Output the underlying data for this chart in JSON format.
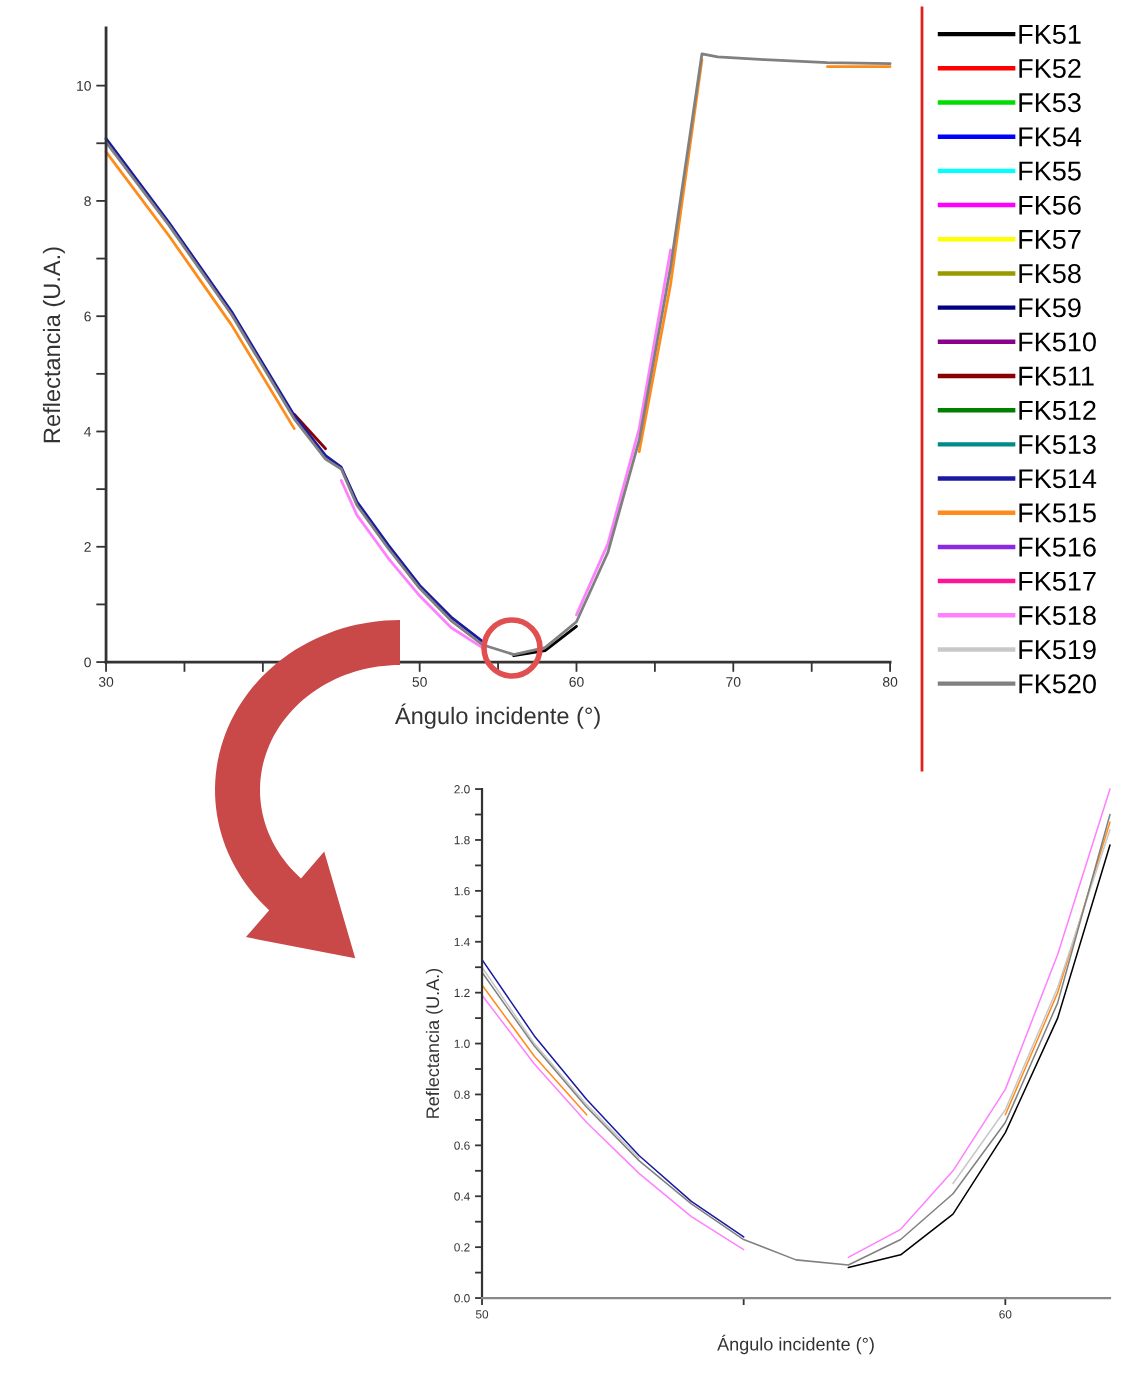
{
  "chart_data": [
    {
      "type": "line",
      "xlabel": "Ángulo incidente (°)",
      "ylabel": "Reflectancia (U.A.)",
      "legend": "right",
      "x": [
        30,
        34,
        38,
        42,
        44,
        45,
        46,
        48,
        50,
        52,
        54,
        56,
        58,
        60,
        62,
        64,
        66,
        68,
        69,
        72,
        76,
        80
      ],
      "xlim": [
        30,
        80
      ],
      "xticks": [
        30,
        {
          "value": 35,
          "label": null
        },
        {
          "value": 40,
          "label": null
        },
        {
          "value": 45,
          "label": null
        },
        50,
        {
          "value": 55,
          "label": null
        },
        60,
        {
          "value": 65,
          "label": null
        },
        70,
        {
          "value": 75,
          "label": null
        },
        80
      ],
      "ylim": [
        0,
        11
      ],
      "yticks": [
        0,
        {
          "value": 1,
          "label": null
        },
        2,
        {
          "value": 3,
          "label": null
        },
        4,
        {
          "value": 5,
          "label": null
        },
        6,
        {
          "value": 7,
          "label": null
        },
        8,
        {
          "value": 9,
          "label": null
        },
        10
      ],
      "series": [
        {
          "name": "FK51",
          "color": "#000000",
          "values": [
            null,
            null,
            null,
            null,
            null,
            null,
            null,
            null,
            null,
            null,
            null,
            0.11,
            0.2,
            0.62,
            null,
            null,
            null,
            null,
            null,
            null,
            null,
            null
          ]
        },
        {
          "name": "FK52",
          "color": "#ff0000",
          "values": [
            null,
            null,
            null,
            null,
            null,
            null,
            null,
            null,
            null,
            null,
            null,
            null,
            null,
            null,
            null,
            null,
            null,
            null,
            null,
            null,
            null,
            null
          ]
        },
        {
          "name": "FK53",
          "color": "#00dd00",
          "values": [
            null,
            null,
            null,
            null,
            null,
            null,
            null,
            null,
            null,
            null,
            null,
            null,
            null,
            null,
            null,
            null,
            null,
            null,
            null,
            null,
            null,
            null
          ]
        },
        {
          "name": "FK54",
          "color": "#0000ff",
          "values": [
            null,
            null,
            null,
            null,
            null,
            null,
            null,
            null,
            null,
            null,
            null,
            null,
            null,
            null,
            null,
            null,
            null,
            null,
            null,
            null,
            null,
            null
          ]
        },
        {
          "name": "FK55",
          "color": "#00ffff",
          "values": [
            null,
            null,
            null,
            null,
            null,
            null,
            null,
            null,
            null,
            null,
            null,
            null,
            null,
            null,
            null,
            null,
            null,
            null,
            null,
            null,
            null,
            null
          ]
        },
        {
          "name": "FK56",
          "color": "#ff00ff",
          "values": [
            null,
            null,
            null,
            null,
            null,
            null,
            null,
            null,
            null,
            null,
            null,
            null,
            null,
            null,
            null,
            null,
            null,
            null,
            null,
            null,
            null,
            null
          ]
        },
        {
          "name": "FK57",
          "color": "#ffff00",
          "values": [
            null,
            null,
            null,
            null,
            null,
            null,
            null,
            null,
            null,
            null,
            null,
            null,
            null,
            null,
            null,
            null,
            null,
            null,
            null,
            null,
            null,
            null
          ]
        },
        {
          "name": "FK58",
          "color": "#999900",
          "values": [
            null,
            null,
            null,
            null,
            null,
            null,
            null,
            null,
            null,
            null,
            null,
            null,
            null,
            null,
            null,
            null,
            null,
            null,
            null,
            null,
            null,
            null
          ]
        },
        {
          "name": "FK59",
          "color": "#000080",
          "values": [
            null,
            null,
            null,
            null,
            null,
            null,
            null,
            null,
            null,
            null,
            null,
            null,
            null,
            null,
            null,
            null,
            null,
            null,
            null,
            null,
            null,
            null
          ]
        },
        {
          "name": "FK510",
          "color": "#8b008b",
          "values": [
            null,
            null,
            null,
            null,
            null,
            null,
            null,
            null,
            null,
            null,
            null,
            null,
            null,
            null,
            null,
            null,
            null,
            null,
            null,
            null,
            null,
            null
          ]
        },
        {
          "name": "FK511",
          "color": "#8b0000",
          "values": [
            null,
            null,
            null,
            4.3,
            3.7,
            null,
            null,
            null,
            null,
            null,
            null,
            null,
            null,
            null,
            null,
            null,
            null,
            null,
            null,
            null,
            null,
            null
          ]
        },
        {
          "name": "FK512",
          "color": "#008000",
          "values": [
            null,
            null,
            null,
            null,
            null,
            null,
            null,
            null,
            null,
            null,
            null,
            null,
            null,
            null,
            null,
            null,
            null,
            null,
            null,
            null,
            null,
            null
          ]
        },
        {
          "name": "FK513",
          "color": "#008b8b",
          "values": [
            null,
            null,
            null,
            null,
            null,
            null,
            null,
            null,
            null,
            null,
            null,
            null,
            null,
            null,
            null,
            null,
            null,
            null,
            null,
            null,
            null,
            null
          ]
        },
        {
          "name": "FK514",
          "color": "#1a1aa0",
          "values": [
            9.08,
            7.63,
            6.08,
            4.28,
            3.58,
            3.38,
            2.78,
            2.03,
            1.33,
            0.78,
            0.36,
            null,
            null,
            null,
            null,
            null,
            null,
            null,
            null,
            null,
            null,
            null
          ]
        },
        {
          "name": "FK515",
          "color": "#ff8c1a",
          "values": [
            8.85,
            7.4,
            5.85,
            4.05,
            null,
            null,
            null,
            null,
            null,
            null,
            null,
            null,
            null,
            null,
            null,
            3.65,
            6.55,
            10.45,
            null,
            null,
            10.33,
            10.33
          ]
        },
        {
          "name": "FK516",
          "color": "#8a2be2",
          "values": [
            null,
            null,
            null,
            null,
            null,
            null,
            null,
            null,
            null,
            null,
            null,
            null,
            null,
            null,
            null,
            null,
            null,
            null,
            null,
            null,
            null,
            null
          ]
        },
        {
          "name": "FK517",
          "color": "#ff1493",
          "values": [
            null,
            null,
            null,
            null,
            null,
            null,
            null,
            null,
            null,
            null,
            null,
            null,
            null,
            null,
            null,
            null,
            null,
            null,
            null,
            null,
            null,
            null
          ]
        },
        {
          "name": "FK518",
          "color": "#ff80ff",
          "values": [
            null,
            null,
            null,
            null,
            null,
            3.15,
            2.55,
            1.8,
            1.15,
            0.6,
            0.25,
            null,
            null,
            0.82,
            2.05,
            4.05,
            7.15,
            null,
            null,
            null,
            null,
            null
          ]
        },
        {
          "name": "FK519",
          "color": "#c8c8c8",
          "values": [
            null,
            null,
            null,
            null,
            null,
            null,
            null,
            null,
            null,
            null,
            null,
            null,
            null,
            null,
            null,
            null,
            null,
            null,
            null,
            null,
            null,
            null
          ]
        },
        {
          "name": "FK520",
          "color": "#808080",
          "values": [
            9.02,
            7.58,
            6.03,
            4.22,
            3.52,
            3.35,
            2.72,
            1.97,
            1.28,
            0.72,
            0.3,
            0.13,
            0.25,
            0.7,
            1.9,
            3.85,
            6.85,
            10.55,
            10.5,
            10.45,
            10.4,
            10.38
          ]
        }
      ]
    },
    {
      "type": "line",
      "xlabel": "Ángulo incidente (°)",
      "ylabel": "Reflectancia (U.A.)",
      "x": [
        50,
        51,
        52,
        53,
        54,
        55,
        56,
        57,
        58,
        59,
        60,
        61,
        62
      ],
      "xlim": [
        50,
        62
      ],
      "xticks": [
        50,
        {
          "value": 55,
          "label": null
        },
        60
      ],
      "ylim": [
        0,
        2
      ],
      "yticks": [
        {
          "value": 0,
          "label": "0.0"
        },
        {
          "value": 0.1,
          "label": null
        },
        {
          "value": 0.2,
          "label": "0.2"
        },
        {
          "value": 0.3,
          "label": null
        },
        {
          "value": 0.4,
          "label": "0.4"
        },
        {
          "value": 0.5,
          "label": null
        },
        {
          "value": 0.6,
          "label": "0.6"
        },
        {
          "value": 0.7,
          "label": null
        },
        {
          "value": 0.8,
          "label": "0.8"
        },
        {
          "value": 0.9,
          "label": null
        },
        {
          "value": 1.0,
          "label": "1.0"
        },
        {
          "value": 1.1,
          "label": null
        },
        {
          "value": 1.2,
          "label": "1.2"
        },
        {
          "value": 1.3,
          "label": null
        },
        {
          "value": 1.4,
          "label": "1.4"
        },
        {
          "value": 1.5,
          "label": null
        },
        {
          "value": 1.6,
          "label": "1.6"
        },
        {
          "value": 1.7,
          "label": null
        },
        {
          "value": 1.8,
          "label": "1.8"
        },
        {
          "value": 1.9,
          "label": null
        },
        {
          "value": 2.0,
          "label": "2.0"
        }
      ],
      "series": [
        {
          "color": "#000000",
          "values": [
            null,
            null,
            null,
            null,
            null,
            null,
            null,
            0.12,
            0.17,
            0.33,
            0.65,
            1.1,
            1.78
          ]
        },
        {
          "color": "#ff0000",
          "values": [
            null,
            null,
            null,
            null,
            null,
            null,
            null,
            null,
            null,
            null,
            null,
            null,
            null
          ]
        },
        {
          "color": "#00dd00",
          "values": [
            null,
            null,
            null,
            null,
            null,
            null,
            null,
            null,
            null,
            null,
            null,
            null,
            null
          ]
        },
        {
          "color": "#0000ff",
          "values": [
            null,
            null,
            null,
            null,
            null,
            null,
            null,
            null,
            null,
            null,
            null,
            null,
            null
          ]
        },
        {
          "color": "#00ffff",
          "values": [
            null,
            null,
            null,
            null,
            null,
            null,
            null,
            null,
            null,
            null,
            null,
            null,
            null
          ]
        },
        {
          "color": "#ff00ff",
          "values": [
            null,
            null,
            null,
            null,
            null,
            null,
            null,
            null,
            null,
            null,
            null,
            null,
            null
          ]
        },
        {
          "color": "#ffff00",
          "values": [
            null,
            null,
            null,
            null,
            null,
            null,
            null,
            null,
            null,
            null,
            null,
            null,
            null
          ]
        },
        {
          "color": "#999900",
          "values": [
            null,
            null,
            null,
            null,
            null,
            null,
            null,
            null,
            null,
            null,
            null,
            null,
            null
          ]
        },
        {
          "color": "#000080",
          "values": [
            null,
            null,
            null,
            null,
            null,
            null,
            null,
            null,
            null,
            null,
            null,
            null,
            null
          ]
        },
        {
          "color": "#8b008b",
          "values": [
            null,
            null,
            null,
            null,
            null,
            null,
            null,
            null,
            null,
            null,
            null,
            null,
            null
          ]
        },
        {
          "color": "#8b0000",
          "values": [
            null,
            null,
            null,
            null,
            null,
            null,
            null,
            null,
            null,
            null,
            null,
            null,
            null
          ]
        },
        {
          "color": "#008000",
          "values": [
            null,
            null,
            null,
            null,
            null,
            null,
            null,
            null,
            null,
            null,
            null,
            null,
            null
          ]
        },
        {
          "color": "#008b8b",
          "values": [
            null,
            null,
            null,
            null,
            null,
            null,
            null,
            null,
            null,
            null,
            null,
            null,
            null
          ]
        },
        {
          "color": "#1a1aa0",
          "values": [
            1.33,
            1.03,
            0.78,
            0.56,
            0.38,
            0.24,
            null,
            null,
            null,
            null,
            null,
            null,
            null
          ]
        },
        {
          "color": "#ff8c1a",
          "values": [
            1.23,
            0.95,
            0.72,
            null,
            null,
            null,
            null,
            null,
            null,
            null,
            0.72,
            1.2,
            1.87
          ]
        },
        {
          "color": "#8a2be2",
          "values": [
            null,
            null,
            null,
            null,
            null,
            null,
            null,
            null,
            null,
            null,
            null,
            null,
            null
          ]
        },
        {
          "color": "#ff1493",
          "values": [
            null,
            null,
            null,
            null,
            null,
            null,
            null,
            null,
            null,
            null,
            null,
            null,
            null
          ]
        },
        {
          "color": "#ff80ff",
          "values": [
            1.19,
            0.92,
            0.69,
            0.49,
            0.32,
            0.19,
            null,
            0.16,
            0.27,
            0.5,
            0.82,
            1.35,
            2.0
          ]
        },
        {
          "color": "#c8c8c8",
          "values": [
            1.3,
            1.0,
            0.76,
            0.55,
            null,
            null,
            null,
            null,
            null,
            0.45,
            0.74,
            1.22,
            1.84
          ]
        },
        {
          "color": "#808080",
          "values": [
            1.28,
            0.99,
            0.75,
            0.54,
            0.37,
            0.23,
            0.15,
            0.13,
            0.23,
            0.41,
            0.69,
            1.16,
            1.9
          ]
        }
      ]
    }
  ]
}
